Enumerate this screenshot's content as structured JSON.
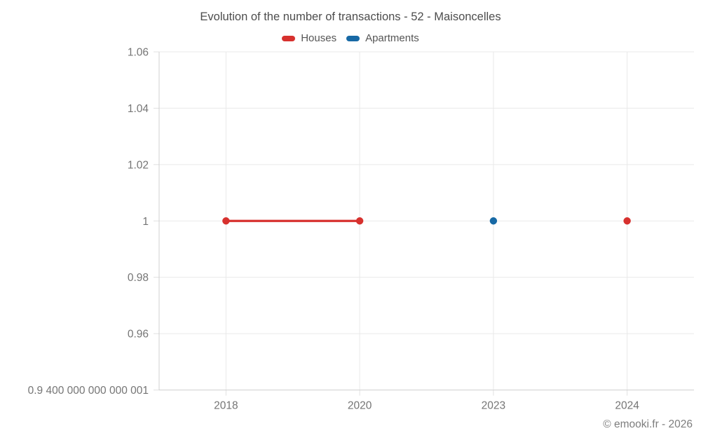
{
  "header": {
    "title": "Evolution of the number of transactions - 52 - Maisoncelles"
  },
  "footer": {
    "credit": "© emooki.fr - 2026"
  },
  "palette": {
    "houses": "#d7312e",
    "apartments": "#1769a5",
    "grid": "#e9e9e9",
    "tick": "#e0e0e0",
    "axis": "#d0d0d0",
    "tick_text": "#757575"
  },
  "chart_data": {
    "type": "line",
    "title": "Evolution of the number of transactions - 52 - Maisoncelles",
    "xlabel": "",
    "ylabel": "",
    "grid": true,
    "legend_position": "top",
    "categories": [
      "2018",
      "2020",
      "2023",
      "2024"
    ],
    "series": [
      {
        "name": "Houses",
        "color": "#d7312e",
        "values": [
          1,
          1,
          null,
          1
        ]
      },
      {
        "name": "Apartments",
        "color": "#1769a5",
        "values": [
          null,
          null,
          1,
          null
        ]
      }
    ],
    "ylim": [
      0.9400000000000001,
      1.06
    ],
    "y_ticks": [
      {
        "value": 1.06,
        "label": "1.06"
      },
      {
        "value": 1.04,
        "label": "1.04"
      },
      {
        "value": 1.02,
        "label": "1.02"
      },
      {
        "value": 1.0,
        "label": "1"
      },
      {
        "value": 0.98,
        "label": "0.98"
      },
      {
        "value": 0.96,
        "label": "0.96"
      },
      {
        "value": 0.9400000000000001,
        "label": "0.9 400 000 000 000 001"
      }
    ]
  }
}
